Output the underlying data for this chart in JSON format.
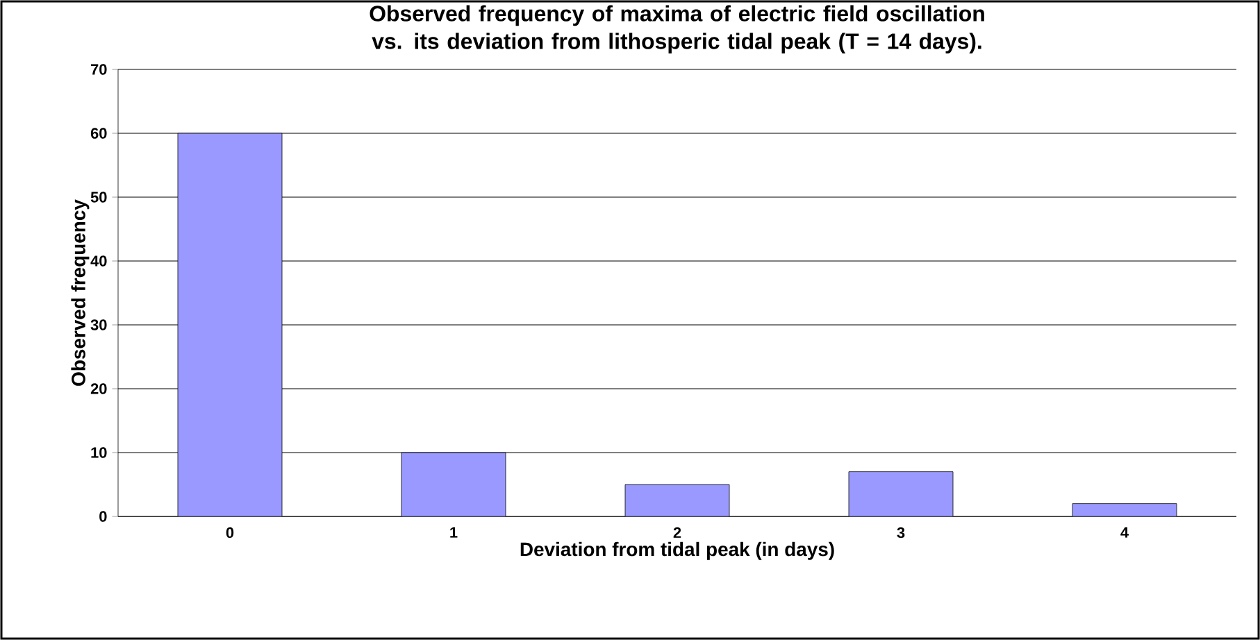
{
  "chart_data": {
    "type": "bar",
    "title": "Observed frequency of maxima of electric field oscillation  vs. its deviation from lithosperic tidal peak (T = 14 days).",
    "xlabel": "Deviation from tidal peak (in days)",
    "ylabel": "Observed frequency",
    "categories": [
      "0",
      "1",
      "2",
      "3",
      "4"
    ],
    "values": [
      60,
      10,
      5,
      7,
      2
    ],
    "color": "#9999ff",
    "ylim": [
      0,
      70
    ],
    "yticks": [
      0,
      10,
      20,
      30,
      40,
      50,
      60,
      70
    ],
    "grid": "y"
  }
}
